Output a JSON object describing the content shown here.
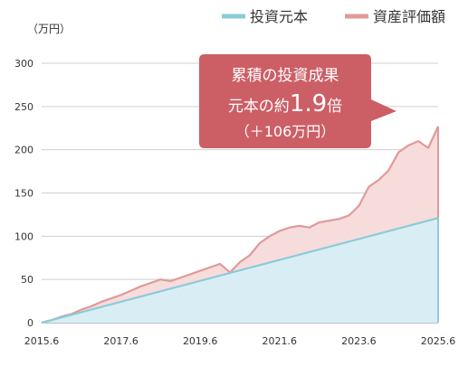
{
  "chart_data": {
    "type": "area",
    "y_unit": "（万円）",
    "ylim": [
      0,
      300
    ],
    "y_ticks": [
      0,
      50,
      100,
      150,
      200,
      250,
      300
    ],
    "x_ticks": [
      "2015.6",
      "2017.6",
      "2019.6",
      "2021.6",
      "2023.6",
      "2025.6"
    ],
    "grid": true,
    "legend_position": "top-right",
    "series": [
      {
        "name": "投資元本",
        "color": "#8ccbd9",
        "fill": "#d9eef4",
        "x": [
          "2015.6",
          "2025.6"
        ],
        "y": [
          0,
          121
        ]
      },
      {
        "name": "資産評価額",
        "color": "#e09a9a",
        "fill": "#f7dcdc",
        "x": [
          "2015.6",
          "2015.9",
          "2015.12",
          "2016.3",
          "2016.6",
          "2016.9",
          "2016.12",
          "2017.3",
          "2017.6",
          "2017.9",
          "2017.12",
          "2018.3",
          "2018.6",
          "2018.9",
          "2018.12",
          "2019.3",
          "2019.6",
          "2019.9",
          "2019.12",
          "2020.3",
          "2020.6",
          "2020.9",
          "2020.12",
          "2021.3",
          "2021.6",
          "2021.9",
          "2021.12",
          "2022.3",
          "2022.6",
          "2022.9",
          "2022.12",
          "2023.3",
          "2023.6",
          "2023.9",
          "2023.12",
          "2024.3",
          "2024.6",
          "2024.9",
          "2024.12",
          "2025.3",
          "2025.6"
        ],
        "y": [
          0,
          3,
          7,
          10,
          15,
          19,
          24,
          28,
          32,
          37,
          42,
          46,
          50,
          48,
          52,
          56,
          60,
          64,
          68,
          58,
          70,
          78,
          92,
          100,
          106,
          110,
          112,
          110,
          116,
          118,
          120,
          124,
          135,
          157,
          165,
          176,
          197,
          205,
          210,
          202,
          227
        ]
      }
    ],
    "callout": {
      "line1": "累積の投資成果",
      "line2_prefix": "元本の約",
      "line2_value": "1.9",
      "line2_suffix": "倍",
      "line3": "（＋106万円）",
      "color": "#cc5f66"
    }
  }
}
